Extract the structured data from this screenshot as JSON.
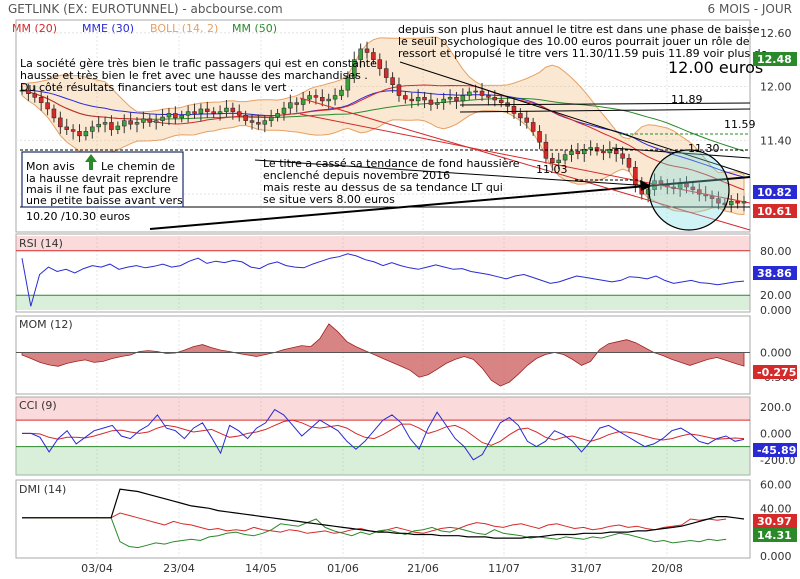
{
  "header": {
    "title": "GETLINK (EX: EUROTUNNEL) - abcbourse.com",
    "period": "6 MOIS - JOUR"
  },
  "legend": [
    {
      "text": "MM (20)",
      "color": "#d42a2a"
    },
    {
      "text": "MME (30)",
      "color": "#2a2ad4"
    },
    {
      "text": "BOLL (14, 2)",
      "color": "#e8a060"
    },
    {
      "text": "MM (50)",
      "color": "#2a8a2a"
    }
  ],
  "annotations": {
    "company": [
      "La société gère très bien le trafic passagers qui est en constante",
      "hausse et très bien le fret avec une hausse des marchandises .",
      "Du côté résultats financiers tout est dans le vert ."
    ],
    "opinion": [
      "Mon avis",
      "Le chemin de",
      "la hausse devrait reprendre",
      "mais il ne faut pas exclure",
      "une petite baisse avant vers",
      "10.20 /10.30 euros"
    ],
    "top_right": [
      "depuis son plus haut annuel le titre est dans une phase de baisse",
      "le seuil psychologique des 10.00 euros pourrait jouer un rôle de",
      "ressort et propulsé le titre vers 11.30/11.59 puis 11.89 voir plus de"
    ],
    "target": "12.00 euros",
    "trend": [
      "Le titre a cassé sa tendance de fond haussière",
      "enclenché depuis novembre 2016",
      "mais reste au dessus de sa tendance LT qui",
      "se situe vers 8.00 euros"
    ],
    "levels": [
      "11.89",
      "11.59",
      "11.30",
      "11.03"
    ]
  },
  "price_badges": [
    {
      "text": "12.48",
      "color": "#2a8a2a"
    },
    {
      "text": "10.82",
      "color": "#2a2ad4"
    },
    {
      "text": "10.61",
      "color": "#d42a2a"
    }
  ],
  "indicator_values": {
    "rsi": "38.86",
    "mom": "-0.275",
    "cci": "-45.89",
    "dmi_plus": "30.97",
    "dmi_minus": "14.31"
  },
  "chart_data": {
    "type": "candlestick",
    "x_labels": [
      "03/04",
      "23/04",
      "14/05",
      "01/06",
      "21/06",
      "11/07",
      "31/07",
      "20/08"
    ],
    "price": {
      "y_ticks": [
        "12.60",
        "12.00",
        "11.40",
        "10.80"
      ],
      "ylim": [
        10.4,
        12.72
      ],
      "close": [
        11.96,
        11.92,
        11.88,
        11.82,
        11.75,
        11.65,
        11.55,
        11.52,
        11.5,
        11.45,
        11.5,
        11.55,
        11.58,
        11.6,
        11.52,
        11.56,
        11.62,
        11.58,
        11.6,
        11.64,
        11.6,
        11.62,
        11.66,
        11.7,
        11.65,
        11.68,
        11.72,
        11.7,
        11.75,
        11.72,
        11.7,
        11.72,
        11.76,
        11.72,
        11.68,
        11.62,
        11.6,
        11.58,
        11.62,
        11.66,
        11.7,
        11.76,
        11.82,
        11.8,
        11.86,
        11.9,
        11.88,
        11.84,
        11.86,
        11.9,
        11.96,
        12.1,
        12.3,
        12.42,
        12.38,
        12.3,
        12.2,
        12.1,
        12.02,
        11.9,
        11.86,
        11.84,
        11.88,
        11.85,
        11.8,
        11.82,
        11.86,
        11.88,
        11.84,
        11.9,
        11.94,
        11.95,
        11.9,
        11.88,
        11.85,
        11.82,
        11.78,
        11.7,
        11.65,
        11.6,
        11.5,
        11.38,
        11.2,
        11.15,
        11.18,
        11.24,
        11.28,
        11.25,
        11.3,
        11.32,
        11.28,
        11.26,
        11.3,
        11.25,
        11.2,
        11.1,
        10.9,
        10.8,
        10.85,
        10.95,
        10.9,
        10.88,
        10.86,
        10.92,
        10.88,
        10.85,
        10.8,
        10.78,
        10.75,
        10.7,
        10.68,
        10.72,
        10.7,
        10.72
      ],
      "mm20_last": 10.61,
      "mme30_last": 10.82,
      "mm50_last": 12.48
    },
    "rsi": {
      "title": "RSI (14)",
      "y_ticks": [
        "80.00",
        "20.00",
        "0.000"
      ],
      "ylim": [
        0,
        100
      ],
      "bands": [
        20,
        80
      ],
      "values": [
        70,
        5,
        48,
        58,
        52,
        55,
        50,
        56,
        60,
        58,
        62,
        55,
        58,
        60,
        57,
        59,
        62,
        58,
        60,
        66,
        70,
        63,
        66,
        64,
        67,
        65,
        58,
        56,
        62,
        65,
        60,
        58,
        57,
        62,
        66,
        70,
        72,
        76,
        73,
        68,
        65,
        60,
        64,
        60,
        57,
        55,
        58,
        61,
        58,
        55,
        56,
        52,
        50,
        48,
        45,
        42,
        46,
        48,
        44,
        40,
        36,
        38,
        42,
        46,
        44,
        42,
        40,
        38,
        40,
        45,
        44,
        42,
        46,
        40,
        36,
        38,
        40,
        37,
        36,
        34,
        36,
        38,
        39
      ]
    },
    "mom": {
      "title": "MOM (12)",
      "y_ticks": [
        "0.000",
        "-0.500"
      ],
      "ylim": [
        -0.8,
        0.7
      ],
      "values": [
        -0.05,
        -0.12,
        -0.2,
        -0.25,
        -0.28,
        -0.22,
        -0.18,
        -0.15,
        -0.2,
        -0.18,
        -0.12,
        -0.08,
        -0.05,
        0.02,
        0.04,
        0.02,
        -0.02,
        -0.01,
        0.05,
        0.12,
        0.16,
        0.1,
        0.05,
        0.02,
        -0.02,
        -0.05,
        -0.08,
        -0.04,
        0.0,
        0.06,
        0.1,
        0.14,
        0.12,
        0.28,
        0.58,
        0.42,
        0.22,
        0.12,
        0.04,
        -0.04,
        -0.12,
        -0.2,
        -0.28,
        -0.36,
        -0.5,
        -0.45,
        -0.34,
        -0.22,
        -0.14,
        -0.08,
        -0.14,
        -0.32,
        -0.56,
        -0.68,
        -0.6,
        -0.44,
        -0.26,
        -0.12,
        -0.04,
        0.0,
        -0.04,
        -0.14,
        -0.26,
        -0.18,
        0.06,
        0.18,
        0.22,
        0.26,
        0.2,
        0.1,
        0.0,
        -0.06,
        -0.14,
        -0.2,
        -0.26,
        -0.2,
        -0.14,
        -0.1,
        -0.16,
        -0.22,
        -0.275
      ]
    },
    "cci": {
      "title": "CCI (9)",
      "y_ticks": [
        "200.0",
        "0.000",
        "-200.0"
      ],
      "ylim": [
        -300,
        260
      ],
      "bands": [
        -100,
        100
      ],
      "cci": [
        0,
        0,
        -30,
        -140,
        -40,
        20,
        -80,
        -30,
        20,
        40,
        60,
        -20,
        -40,
        20,
        60,
        140,
        40,
        20,
        -40,
        40,
        80,
        -30,
        -150,
        60,
        20,
        -40,
        40,
        80,
        180,
        140,
        60,
        -20,
        40,
        100,
        60,
        20,
        -60,
        -120,
        -60,
        20,
        100,
        140,
        80,
        -40,
        -120,
        40,
        160,
        60,
        -40,
        -100,
        -200,
        -160,
        -40,
        80,
        120,
        60,
        -60,
        -100,
        -60,
        20,
        -10,
        -60,
        -140,
        -60,
        40,
        60,
        20,
        -20,
        -60,
        -100,
        -80,
        -40,
        20,
        40,
        0,
        -60,
        -80,
        -40,
        -20,
        -60,
        -46
      ],
      "signal": [
        0,
        0,
        -5,
        -30,
        -45,
        -30,
        -30,
        -35,
        -20,
        0,
        20,
        25,
        10,
        0,
        10,
        40,
        60,
        50,
        30,
        10,
        20,
        30,
        0,
        -30,
        -20,
        0,
        10,
        30,
        60,
        90,
        100,
        80,
        50,
        40,
        50,
        60,
        40,
        0,
        -30,
        -40,
        -10,
        30,
        70,
        70,
        40,
        0,
        20,
        50,
        60,
        30,
        -20,
        -70,
        -90,
        -60,
        -10,
        30,
        40,
        10,
        -30,
        -50,
        -30,
        -20,
        -40,
        -60,
        -40,
        -10,
        10,
        10,
        0,
        -20,
        -40,
        -50,
        -40,
        -20,
        -5,
        -15,
        -30,
        -45,
        -40,
        -35,
        -40
      ]
    },
    "dmi": {
      "title": "DMI (14)",
      "y_ticks": [
        "60.00",
        "40.00",
        "20.00",
        "0.000"
      ],
      "ylim": [
        0,
        62
      ],
      "adx": [
        32,
        32,
        32,
        32,
        32,
        32,
        32,
        32,
        32,
        32,
        32,
        56,
        55,
        54,
        52,
        50,
        48,
        46,
        44,
        42,
        41,
        40,
        38,
        37,
        36,
        35,
        34,
        33,
        32,
        31,
        30,
        29,
        28,
        27,
        26,
        25,
        24,
        23,
        22,
        21,
        20,
        20,
        19,
        19,
        18,
        18,
        18,
        17,
        17,
        17,
        16,
        16,
        16,
        15,
        15,
        15,
        15,
        16,
        16,
        17,
        18,
        18,
        18,
        19,
        19,
        19,
        20,
        20,
        20,
        21,
        21,
        22,
        23,
        24,
        25,
        27,
        29,
        31,
        33,
        33,
        32,
        31
      ],
      "di_plus": [
        32,
        32,
        32,
        32,
        32,
        32,
        32,
        32,
        32,
        32,
        32,
        36,
        34,
        32,
        30,
        28,
        26,
        29,
        27,
        26,
        24,
        22,
        23,
        21,
        22,
        21,
        24,
        22,
        21,
        20,
        22,
        21,
        19,
        20,
        21,
        19,
        20,
        22,
        23,
        21,
        20,
        22,
        24,
        22,
        20,
        19,
        21,
        23,
        24,
        23,
        26,
        28,
        27,
        25,
        24,
        26,
        27,
        25,
        23,
        26,
        27,
        25,
        23,
        24,
        22,
        23,
        25,
        26,
        24,
        25,
        23,
        22,
        24,
        25,
        26,
        31,
        30,
        31,
        30,
        31
      ],
      "di_minus": [
        32,
        32,
        32,
        32,
        32,
        32,
        32,
        32,
        32,
        32,
        32,
        12,
        8,
        7,
        9,
        11,
        10,
        12,
        13,
        14,
        13,
        16,
        17,
        19,
        20,
        18,
        17,
        19,
        22,
        27,
        26,
        25,
        28,
        31,
        24,
        21,
        19,
        17,
        20,
        18,
        21,
        22,
        20,
        18,
        21,
        22,
        24,
        21,
        20,
        23,
        21,
        19,
        18,
        22,
        19,
        18,
        17,
        15,
        16,
        15,
        14,
        16,
        15,
        14,
        16,
        15,
        17,
        19,
        18,
        16,
        14,
        12,
        13,
        11,
        12,
        13,
        12,
        14,
        13,
        14
      ]
    }
  }
}
